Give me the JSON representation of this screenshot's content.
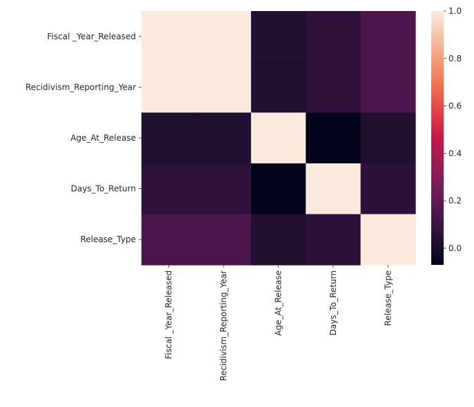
{
  "chart_data": {
    "type": "heatmap",
    "title": "",
    "xlabel": "",
    "ylabel": "",
    "x_categories": [
      "Fiscal _Year_Released",
      "Recidivism_Reporting_Year",
      "Age_At_Release",
      "Days_To_Return",
      "Release_Type"
    ],
    "y_categories": [
      "Fiscal _Year_Released",
      "Recidivism_Reporting_Year",
      "Age_At_Release",
      "Days_To_Return",
      "Release_Type"
    ],
    "values": [
      [
        1.0,
        1.0,
        0.03,
        0.07,
        0.14
      ],
      [
        1.0,
        1.0,
        0.03,
        0.07,
        0.14
      ],
      [
        0.03,
        0.03,
        1.0,
        -0.07,
        0.03
      ],
      [
        0.07,
        0.07,
        -0.07,
        1.0,
        0.06
      ],
      [
        0.14,
        0.14,
        0.03,
        0.06,
        1.0
      ]
    ],
    "colorbar": {
      "vmin": -0.07,
      "vmax": 1.0,
      "ticks": [
        0.0,
        0.2,
        0.4,
        0.6,
        0.8,
        1.0
      ],
      "tick_labels": [
        "0.0",
        "0.2",
        "0.4",
        "0.6",
        "0.8",
        "1.0"
      ],
      "colormap": "rocket"
    }
  }
}
